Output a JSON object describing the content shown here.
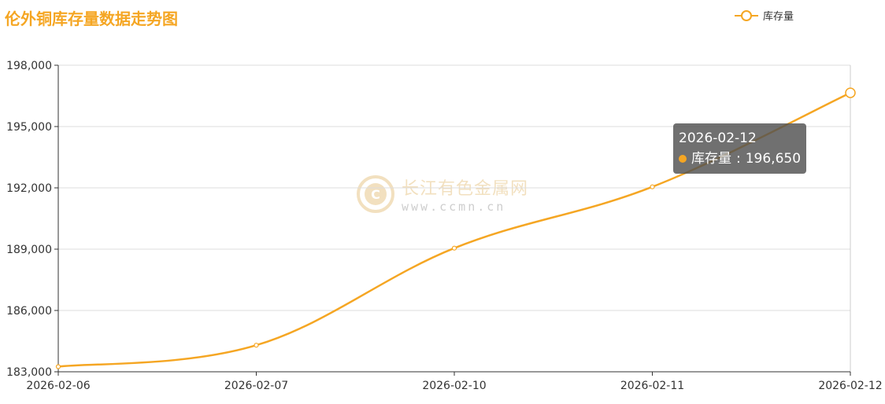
{
  "chart_data": {
    "type": "line",
    "title": "伦外铜库存量数据走势图",
    "categories": [
      "2026-02-06",
      "2026-02-07",
      "2026-02-10",
      "2026-02-11",
      "2026-02-12"
    ],
    "series": [
      {
        "name": "库存量",
        "values": [
          183250,
          184300,
          189050,
          192050,
          196650
        ]
      }
    ],
    "ylim": [
      183000,
      198000
    ],
    "yticks": [
      183000,
      186000,
      189000,
      192000,
      195000,
      198000
    ],
    "y_tick_labels": [
      "183,000",
      "186,000",
      "189,000",
      "192,000",
      "195,000",
      "198,000"
    ],
    "grid": "horizontal",
    "legend_position": "top-right",
    "smooth": true
  },
  "tooltip": {
    "date": "2026-02-12",
    "series_label": "库存量",
    "value_text": "196,650"
  },
  "watermark": {
    "name": "长江有色金属网",
    "url": "www.ccmn.cn"
  },
  "colors": {
    "series": "#f5a623",
    "title": "#f5a623",
    "grid": "#dddddd",
    "axis": "#333333"
  }
}
